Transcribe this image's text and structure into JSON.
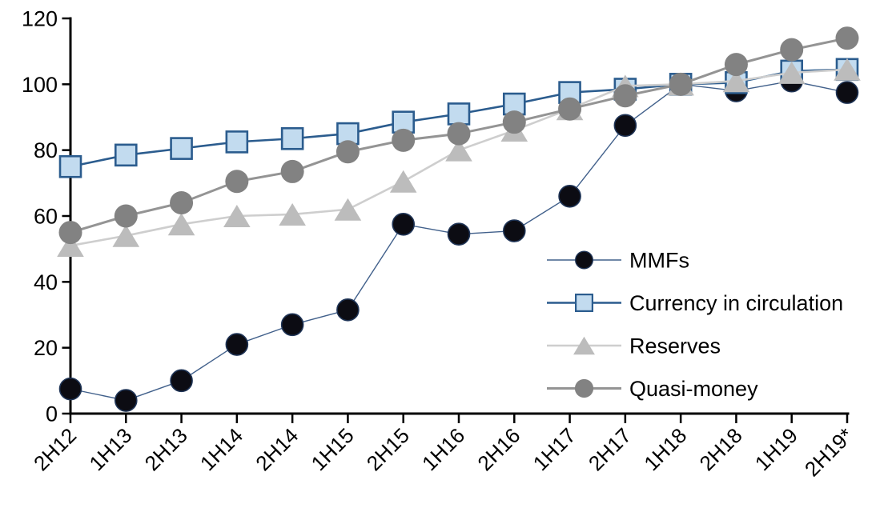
{
  "chart_data": {
    "type": "line",
    "title": "",
    "subtitle": "",
    "xlabel": "",
    "ylabel": "",
    "grid": false,
    "legend_position": "inside-right",
    "ylim": [
      0,
      120
    ],
    "ytick_step": 20,
    "ytick_labels": [
      "0",
      "20",
      "40",
      "60",
      "80",
      "100",
      "120"
    ],
    "categories": [
      "2H12",
      "1H13",
      "2H13",
      "1H14",
      "2H14",
      "1H15",
      "2H15",
      "1H16",
      "2H16",
      "1H17",
      "2H17",
      "1H18",
      "2H18",
      "1H19",
      "2H19*"
    ],
    "series": [
      {
        "name": "MMFs",
        "marker": "circle",
        "marker_fill": "#0c0c13",
        "marker_stroke": "#1f3456",
        "marker_stroke_width": 1.6,
        "marker_size": 27,
        "line_color": "#41608b",
        "line_width": 1.4,
        "values": [
          7.5,
          4,
          10,
          21,
          27,
          31.5,
          57.5,
          54.5,
          55.5,
          66,
          87.5,
          100,
          98,
          101,
          97.5
        ]
      },
      {
        "name": "Currency in circulation",
        "marker": "square",
        "marker_fill": "#c2dbef",
        "marker_stroke": "#2b5c8e",
        "marker_stroke_width": 2.6,
        "marker_size": 26,
        "line_color": "#2b5c8e",
        "line_width": 2.6,
        "values": [
          75,
          78.5,
          80.5,
          82.5,
          83.5,
          85,
          88.5,
          91,
          94,
          97.5,
          98.5,
          100,
          100.5,
          104,
          104.5
        ]
      },
      {
        "name": "Reserves",
        "marker": "triangle",
        "marker_fill": "#bcbcbc",
        "marker_stroke": "none",
        "marker_stroke_width": 0,
        "marker_size": 28,
        "line_color": "#cecece",
        "line_width": 2.6,
        "values": [
          51,
          54,
          57.5,
          60,
          60.5,
          62,
          70.5,
          80,
          86,
          92.5,
          99.5,
          100,
          101,
          103.5,
          104.5
        ]
      },
      {
        "name": "Quasi-money",
        "marker": "circle",
        "marker_fill": "#828282",
        "marker_stroke": "none",
        "marker_stroke_width": 0,
        "marker_size": 29,
        "line_color": "#949494",
        "line_width": 3,
        "values": [
          55,
          60,
          64,
          70.5,
          73.5,
          79.5,
          83,
          85,
          88.5,
          92.5,
          96.5,
          100,
          106,
          110.5,
          114
        ]
      }
    ],
    "axis_color": "#000000"
  }
}
